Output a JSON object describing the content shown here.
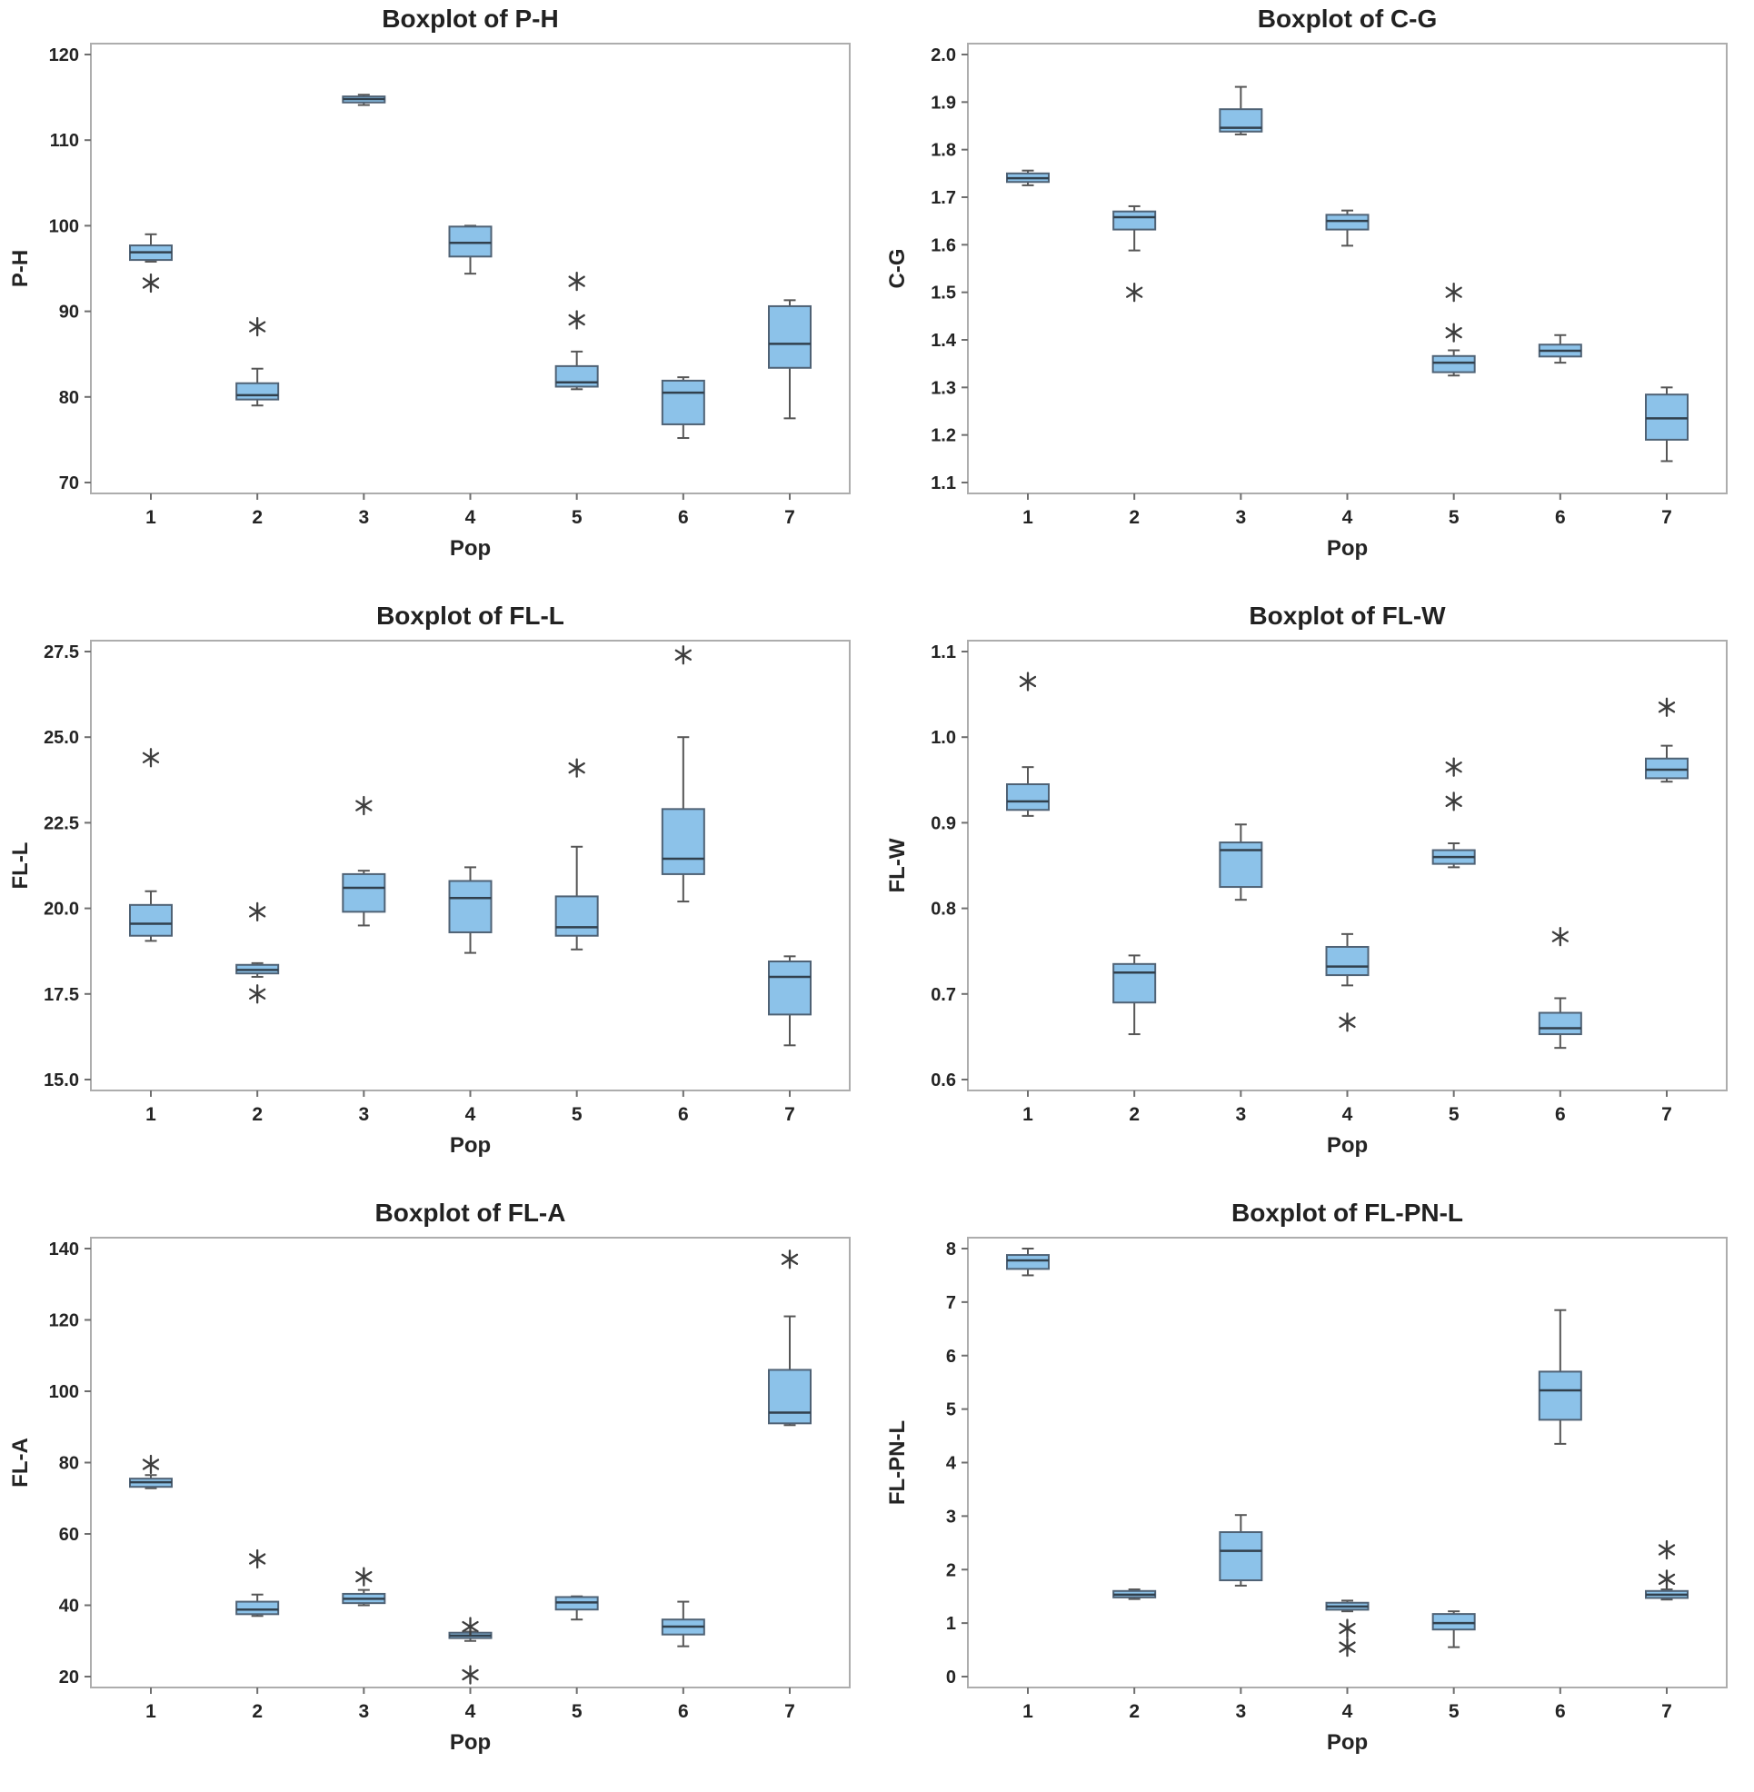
{
  "page": {
    "background": "#ffffff",
    "layout": {
      "columns": 2,
      "rows": 3
    }
  },
  "style": {
    "box_fill": "#8CC2E9",
    "box_edge": "#4F6275",
    "median_color": "#31404D",
    "whisker_color": "#565656",
    "outlier_color": "#3D3D3D",
    "frame_color": "#ADADAD",
    "tick_color": "#6E6E6E",
    "text_color": "#242424",
    "title_color": "#212121"
  },
  "chart_data": [
    {
      "type": "box",
      "title": "Boxplot of P-H",
      "xlabel": "Pop",
      "ylabel": "P-H",
      "categories": [
        "1",
        "2",
        "3",
        "4",
        "5",
        "6",
        "7"
      ],
      "ylim": [
        70,
        120
      ],
      "grid": false,
      "legend": false,
      "yticks": [
        {
          "v": 70,
          "label": "70"
        },
        {
          "v": 80,
          "label": "80"
        },
        {
          "v": 90,
          "label": "90"
        },
        {
          "v": 100,
          "label": "100"
        },
        {
          "v": 110,
          "label": "110"
        },
        {
          "v": 120,
          "label": "120"
        }
      ],
      "boxes": [
        {
          "whislo": 95.8,
          "q1": 96.0,
          "med": 96.9,
          "q3": 97.7,
          "whishi": 99.0,
          "outliers": [
            93.3
          ]
        },
        {
          "whislo": 79.0,
          "q1": 79.7,
          "med": 80.2,
          "q3": 81.6,
          "whishi": 83.3,
          "outliers": [
            88.2
          ]
        },
        {
          "whislo": 114.1,
          "q1": 114.4,
          "med": 114.8,
          "q3": 115.1,
          "whishi": 115.3,
          "outliers": []
        },
        {
          "whislo": 94.4,
          "q1": 96.4,
          "med": 98.0,
          "q3": 99.9,
          "whishi": 100.0,
          "outliers": []
        },
        {
          "whislo": 80.9,
          "q1": 81.2,
          "med": 81.7,
          "q3": 83.6,
          "whishi": 85.3,
          "outliers": [
            89.0,
            93.5
          ]
        },
        {
          "whislo": 75.2,
          "q1": 76.8,
          "med": 80.5,
          "q3": 81.9,
          "whishi": 82.3,
          "outliers": []
        },
        {
          "whislo": 77.5,
          "q1": 83.4,
          "med": 86.2,
          "q3": 90.6,
          "whishi": 91.3,
          "outliers": []
        }
      ]
    },
    {
      "type": "box",
      "title": "Boxplot of C-G",
      "xlabel": "Pop",
      "ylabel": "C-G",
      "categories": [
        "1",
        "2",
        "3",
        "4",
        "5",
        "6",
        "7"
      ],
      "ylim": [
        1.1,
        2.0
      ],
      "grid": false,
      "legend": false,
      "yticks": [
        {
          "v": 1.1,
          "label": "1.1"
        },
        {
          "v": 1.2,
          "label": "1.2"
        },
        {
          "v": 1.3,
          "label": "1.3"
        },
        {
          "v": 1.4,
          "label": "1.4"
        },
        {
          "v": 1.5,
          "label": "1.5"
        },
        {
          "v": 1.6,
          "label": "1.6"
        },
        {
          "v": 1.7,
          "label": "1.7"
        },
        {
          "v": 1.8,
          "label": "1.8"
        },
        {
          "v": 1.9,
          "label": "1.9"
        },
        {
          "v": 2.0,
          "label": "2.0"
        }
      ],
      "boxes": [
        {
          "whislo": 1.725,
          "q1": 1.732,
          "med": 1.74,
          "q3": 1.75,
          "whishi": 1.756,
          "outliers": []
        },
        {
          "whislo": 1.588,
          "q1": 1.632,
          "med": 1.658,
          "q3": 1.67,
          "whishi": 1.681,
          "outliers": [
            1.5
          ]
        },
        {
          "whislo": 1.832,
          "q1": 1.838,
          "med": 1.846,
          "q3": 1.885,
          "whishi": 1.932,
          "outliers": []
        },
        {
          "whislo": 1.598,
          "q1": 1.632,
          "med": 1.65,
          "q3": 1.663,
          "whishi": 1.672,
          "outliers": []
        },
        {
          "whislo": 1.325,
          "q1": 1.332,
          "med": 1.352,
          "q3": 1.366,
          "whishi": 1.378,
          "outliers": [
            1.415,
            1.5
          ]
        },
        {
          "whislo": 1.352,
          "q1": 1.365,
          "med": 1.377,
          "q3": 1.39,
          "whishi": 1.41,
          "outliers": []
        },
        {
          "whislo": 1.145,
          "q1": 1.19,
          "med": 1.235,
          "q3": 1.285,
          "whishi": 1.3,
          "outliers": []
        }
      ]
    },
    {
      "type": "box",
      "title": "Boxplot of FL-L",
      "xlabel": "Pop",
      "ylabel": "FL-L",
      "categories": [
        "1",
        "2",
        "3",
        "4",
        "5",
        "6",
        "7"
      ],
      "ylim": [
        15.0,
        27.5
      ],
      "grid": false,
      "legend": false,
      "yticks": [
        {
          "v": 15.0,
          "label": "15.0"
        },
        {
          "v": 17.5,
          "label": "17.5"
        },
        {
          "v": 20.0,
          "label": "20.0"
        },
        {
          "v": 22.5,
          "label": "22.5"
        },
        {
          "v": 25.0,
          "label": "25.0"
        },
        {
          "v": 27.5,
          "label": "27.5"
        }
      ],
      "boxes": [
        {
          "whislo": 19.05,
          "q1": 19.2,
          "med": 19.55,
          "q3": 20.1,
          "whishi": 20.5,
          "outliers": [
            24.4
          ]
        },
        {
          "whislo": 18.0,
          "q1": 18.1,
          "med": 18.2,
          "q3": 18.35,
          "whishi": 18.4,
          "outliers": [
            19.9,
            17.5
          ]
        },
        {
          "whislo": 19.5,
          "q1": 19.9,
          "med": 20.6,
          "q3": 21.0,
          "whishi": 21.1,
          "outliers": [
            23.0
          ]
        },
        {
          "whislo": 18.7,
          "q1": 19.3,
          "med": 20.3,
          "q3": 20.8,
          "whishi": 21.2,
          "outliers": []
        },
        {
          "whislo": 18.8,
          "q1": 19.2,
          "med": 19.45,
          "q3": 20.35,
          "whishi": 21.8,
          "outliers": [
            24.1
          ]
        },
        {
          "whislo": 20.2,
          "q1": 21.0,
          "med": 21.45,
          "q3": 22.9,
          "whishi": 25.0,
          "outliers": [
            27.4
          ]
        },
        {
          "whislo": 16.0,
          "q1": 16.9,
          "med": 18.0,
          "q3": 18.45,
          "whishi": 18.6,
          "outliers": []
        }
      ]
    },
    {
      "type": "box",
      "title": "Boxplot of FL-W",
      "xlabel": "Pop",
      "ylabel": "FL-W",
      "categories": [
        "1",
        "2",
        "3",
        "4",
        "5",
        "6",
        "7"
      ],
      "ylim": [
        0.6,
        1.1
      ],
      "grid": false,
      "legend": false,
      "yticks": [
        {
          "v": 0.6,
          "label": "0.6"
        },
        {
          "v": 0.7,
          "label": "0.7"
        },
        {
          "v": 0.8,
          "label": "0.8"
        },
        {
          "v": 0.9,
          "label": "0.9"
        },
        {
          "v": 1.0,
          "label": "1.0"
        },
        {
          "v": 1.1,
          "label": "1.1"
        }
      ],
      "boxes": [
        {
          "whislo": 0.908,
          "q1": 0.915,
          "med": 0.925,
          "q3": 0.945,
          "whishi": 0.965,
          "outliers": [
            1.065
          ]
        },
        {
          "whislo": 0.653,
          "q1": 0.69,
          "med": 0.725,
          "q3": 0.735,
          "whishi": 0.745,
          "outliers": []
        },
        {
          "whislo": 0.81,
          "q1": 0.825,
          "med": 0.868,
          "q3": 0.877,
          "whishi": 0.898,
          "outliers": []
        },
        {
          "whislo": 0.71,
          "q1": 0.722,
          "med": 0.732,
          "q3": 0.755,
          "whishi": 0.77,
          "outliers": [
            0.667
          ]
        },
        {
          "whislo": 0.848,
          "q1": 0.852,
          "med": 0.86,
          "q3": 0.868,
          "whishi": 0.876,
          "outliers": [
            0.925,
            0.965
          ]
        },
        {
          "whislo": 0.637,
          "q1": 0.653,
          "med": 0.66,
          "q3": 0.678,
          "whishi": 0.695,
          "outliers": [
            0.767
          ]
        },
        {
          "whislo": 0.948,
          "q1": 0.952,
          "med": 0.962,
          "q3": 0.975,
          "whishi": 0.99,
          "outliers": [
            1.035
          ]
        }
      ]
    },
    {
      "type": "box",
      "title": "Boxplot of FL-A",
      "xlabel": "Pop",
      "ylabel": "FL-A",
      "categories": [
        "1",
        "2",
        "3",
        "4",
        "5",
        "6",
        "7"
      ],
      "ylim": [
        20,
        140
      ],
      "grid": false,
      "legend": false,
      "yticks": [
        {
          "v": 20,
          "label": "20"
        },
        {
          "v": 40,
          "label": "40"
        },
        {
          "v": 60,
          "label": "60"
        },
        {
          "v": 80,
          "label": "80"
        },
        {
          "v": 100,
          "label": "100"
        },
        {
          "v": 120,
          "label": "120"
        },
        {
          "v": 140,
          "label": "140"
        }
      ],
      "boxes": [
        {
          "whislo": 72.8,
          "q1": 73.2,
          "med": 74.5,
          "q3": 75.5,
          "whishi": 76.5,
          "outliers": [
            79.5
          ]
        },
        {
          "whislo": 37.0,
          "q1": 37.5,
          "med": 38.8,
          "q3": 41.0,
          "whishi": 43.0,
          "outliers": [
            53.0
          ]
        },
        {
          "whislo": 40.0,
          "q1": 40.6,
          "med": 41.8,
          "q3": 43.2,
          "whishi": 44.3,
          "outliers": [
            48.0
          ]
        },
        {
          "whislo": 30.0,
          "q1": 30.8,
          "med": 31.5,
          "q3": 32.3,
          "whishi": 32.6,
          "outliers": [
            34.0,
            20.5
          ]
        },
        {
          "whislo": 36.0,
          "q1": 38.8,
          "med": 40.8,
          "q3": 42.3,
          "whishi": 42.5,
          "outliers": []
        },
        {
          "whislo": 28.5,
          "q1": 31.8,
          "med": 34.0,
          "q3": 36.0,
          "whishi": 41.0,
          "outliers": []
        },
        {
          "whislo": 90.5,
          "q1": 91.0,
          "med": 94.0,
          "q3": 106.0,
          "whishi": 121.0,
          "outliers": [
            137.0
          ]
        }
      ]
    },
    {
      "type": "box",
      "title": "Boxplot of FL-PN-L",
      "xlabel": "Pop",
      "ylabel": "FL-PN-L",
      "categories": [
        "1",
        "2",
        "3",
        "4",
        "5",
        "6",
        "7"
      ],
      "ylim": [
        0,
        8
      ],
      "grid": false,
      "legend": false,
      "yticks": [
        {
          "v": 0,
          "label": "0"
        },
        {
          "v": 1,
          "label": "1"
        },
        {
          "v": 2,
          "label": "2"
        },
        {
          "v": 3,
          "label": "3"
        },
        {
          "v": 4,
          "label": "4"
        },
        {
          "v": 5,
          "label": "5"
        },
        {
          "v": 6,
          "label": "6"
        },
        {
          "v": 7,
          "label": "7"
        },
        {
          "v": 8,
          "label": "8"
        }
      ],
      "boxes": [
        {
          "whislo": 7.5,
          "q1": 7.62,
          "med": 7.78,
          "q3": 7.88,
          "whishi": 8.0,
          "outliers": []
        },
        {
          "whislo": 1.45,
          "q1": 1.48,
          "med": 1.53,
          "q3": 1.6,
          "whishi": 1.63,
          "outliers": []
        },
        {
          "whislo": 1.7,
          "q1": 1.8,
          "med": 2.35,
          "q3": 2.7,
          "whishi": 3.02,
          "outliers": []
        },
        {
          "whislo": 1.22,
          "q1": 1.25,
          "med": 1.31,
          "q3": 1.38,
          "whishi": 1.42,
          "outliers": [
            0.9,
            0.55
          ]
        },
        {
          "whislo": 0.55,
          "q1": 0.88,
          "med": 1.0,
          "q3": 1.17,
          "whishi": 1.22,
          "outliers": []
        },
        {
          "whislo": 4.35,
          "q1": 4.8,
          "med": 5.35,
          "q3": 5.7,
          "whishi": 6.85,
          "outliers": []
        },
        {
          "whislo": 1.44,
          "q1": 1.47,
          "med": 1.53,
          "q3": 1.6,
          "whishi": 1.63,
          "outliers": [
            2.37,
            1.82
          ]
        }
      ]
    }
  ]
}
